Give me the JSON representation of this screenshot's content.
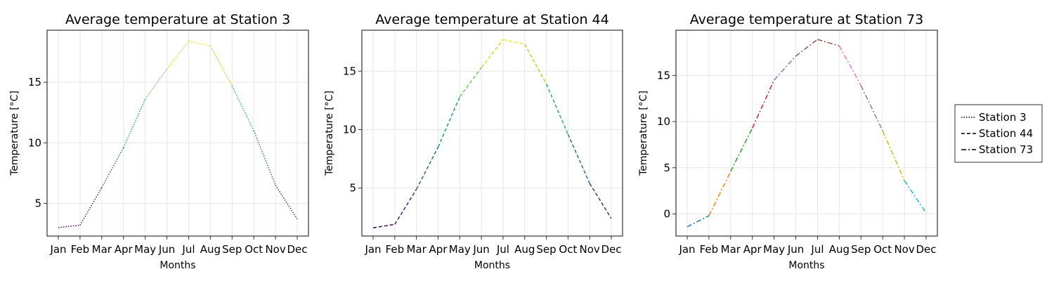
{
  "chart_data": [
    {
      "type": "line",
      "title": "Average temperature at Station 3",
      "xlabel": "Months",
      "ylabel": "Temperature [°C]",
      "categories": [
        "Jan",
        "Feb",
        "Mar",
        "Apr",
        "May",
        "Jun",
        "Jul",
        "Aug",
        "Sep",
        "Oct",
        "Nov",
        "Dec"
      ],
      "yticks": [
        5,
        10,
        15
      ],
      "ylim": [
        2.3,
        19.3
      ],
      "grid": true,
      "line_style": "dotted",
      "colormap": "viridis",
      "series": [
        {
          "name": "Station 3",
          "values": [
            3.0,
            3.2,
            6.3,
            9.6,
            13.6,
            16.1,
            18.4,
            18.0,
            14.7,
            11.0,
            6.5,
            3.7
          ]
        }
      ]
    },
    {
      "type": "line",
      "title": "Average temperature at Station 44",
      "xlabel": "Months",
      "ylabel": "Temperature [°C]",
      "categories": [
        "Jan",
        "Feb",
        "Mar",
        "Apr",
        "May",
        "Jun",
        "Jul",
        "Aug",
        "Sep",
        "Oct",
        "Nov",
        "Dec"
      ],
      "yticks": [
        5,
        10,
        15
      ],
      "ylim": [
        0.9,
        18.5
      ],
      "grid": true,
      "line_style": "dashed",
      "colormap": "viridis",
      "series": [
        {
          "name": "Station 44",
          "values": [
            1.6,
            1.9,
            4.9,
            8.5,
            12.8,
            15.3,
            17.7,
            17.3,
            13.9,
            9.6,
            5.4,
            2.4
          ]
        }
      ]
    },
    {
      "type": "line",
      "title": "Average temperature at Station 73",
      "xlabel": "Months",
      "ylabel": "Temperature [°C]",
      "categories": [
        "Jan",
        "Feb",
        "Mar",
        "Apr",
        "May",
        "Jun",
        "Jul",
        "Aug",
        "Sep",
        "Oct",
        "Nov",
        "Dec"
      ],
      "yticks": [
        0,
        5,
        10,
        15
      ],
      "ylim": [
        -2.4,
        19.9
      ],
      "grid": true,
      "line_style": "dashdot",
      "colormap": "tab10",
      "series": [
        {
          "name": "Station 73",
          "values": [
            -1.4,
            -0.2,
            4.6,
            9.3,
            14.5,
            17.1,
            18.9,
            18.2,
            13.9,
            9.0,
            3.6,
            0.1
          ]
        }
      ]
    }
  ],
  "legend": {
    "position": "right",
    "entries": [
      {
        "label": "Station 3",
        "style": "dotted"
      },
      {
        "label": "Station 44",
        "style": "dashed"
      },
      {
        "label": "Station 73",
        "style": "dashdot"
      }
    ]
  },
  "colors": {
    "axis": "#333333",
    "grid": "#e6e6e6",
    "viridis": [
      "#440154",
      "#482878",
      "#3e4a89",
      "#31688e",
      "#26828e",
      "#1f9e89",
      "#35b779",
      "#6ece58",
      "#b5de2b",
      "#fde725"
    ],
    "tab10": [
      "#1f77b4",
      "#ff7f0e",
      "#2ca02c",
      "#d62728",
      "#9467bd",
      "#8c564b",
      "#e377c2",
      "#7f7f7f",
      "#bcbd22",
      "#17becf"
    ]
  }
}
